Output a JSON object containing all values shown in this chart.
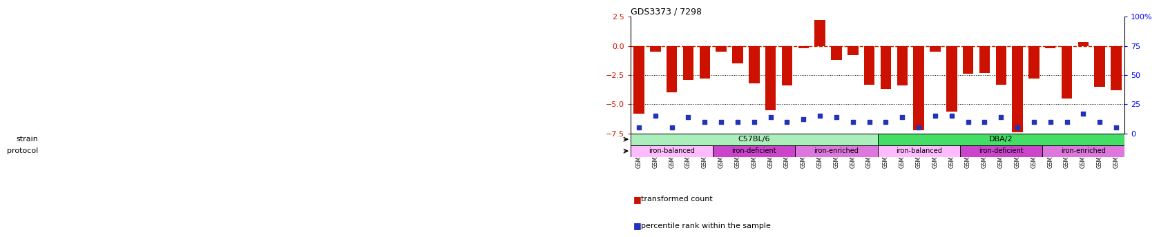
{
  "title": "GDS3373 / 7298",
  "samples": [
    "GSM262762",
    "GSM262765",
    "GSM262768",
    "GSM262769",
    "GSM262770",
    "GSM262796",
    "GSM262797",
    "GSM262798",
    "GSM262799",
    "GSM262800",
    "GSM262771",
    "GSM262772",
    "GSM262773",
    "GSM262794",
    "GSM262795",
    "GSM262817",
    "GSM262819",
    "GSM262820",
    "GSM262839",
    "GSM262840",
    "GSM262950",
    "GSM262951",
    "GSM262952",
    "GSM262953",
    "GSM262954",
    "GSM262841",
    "GSM262842",
    "GSM262843",
    "GSM262844",
    "GSM262845"
  ],
  "bar_values": [
    -5.8,
    -0.5,
    -4.0,
    -2.9,
    -2.8,
    -0.5,
    -1.5,
    -3.2,
    -5.5,
    -3.4,
    -0.2,
    2.2,
    -1.2,
    -0.8,
    -3.3,
    -3.7,
    -3.4,
    -7.2,
    -0.5,
    -5.6,
    -2.4,
    -2.3,
    -3.3,
    -7.4,
    -2.8,
    -0.2,
    -4.5,
    0.3,
    -3.5,
    -3.8
  ],
  "percentile_values": [
    5,
    15,
    5,
    14,
    10,
    10,
    10,
    10,
    14,
    10,
    12,
    15,
    14,
    10,
    10,
    10,
    14,
    5,
    15,
    15,
    10,
    10,
    14,
    5,
    10,
    10,
    10,
    17,
    10,
    5
  ],
  "strain_groups": [
    {
      "label": "C57BL/6",
      "start": 0,
      "end": 15,
      "color": "#aaeebb"
    },
    {
      "label": "DBA/2",
      "start": 15,
      "end": 30,
      "color": "#44dd66"
    }
  ],
  "protocol_groups": [
    {
      "label": "iron-balanced",
      "start": 0,
      "end": 5,
      "color": "#ffbbff"
    },
    {
      "label": "iron-deficient",
      "start": 5,
      "end": 10,
      "color": "#cc44cc"
    },
    {
      "label": "iron-enriched",
      "start": 10,
      "end": 15,
      "color": "#ee88ee"
    },
    {
      "label": "iron-balanced",
      "start": 15,
      "end": 20,
      "color": "#ffbbff"
    },
    {
      "label": "iron-deficient",
      "start": 20,
      "end": 25,
      "color": "#cc44cc"
    },
    {
      "label": "iron-enriched",
      "start": 25,
      "end": 30,
      "color": "#ee88ee"
    }
  ],
  "ylim": [
    -7.5,
    2.5
  ],
  "yticks_left": [
    -7.5,
    -5.0,
    -2.5,
    0.0,
    2.5
  ],
  "yticks_right_labels": [
    "0",
    "25",
    "50",
    "75",
    "100%"
  ],
  "bar_color": "#cc1100",
  "dot_color": "#2233bb",
  "dashed_line_color": "#cc2200",
  "background_color": "#ffffff"
}
